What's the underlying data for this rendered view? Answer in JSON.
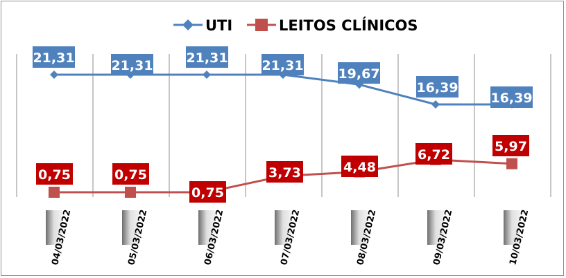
{
  "chart_data": {
    "type": "line",
    "categories": [
      "04/03/2022",
      "05/03/2022",
      "06/03/2022",
      "07/03/2022",
      "08/03/2022",
      "09/03/2022",
      "10/03/2022"
    ],
    "series": [
      {
        "name": "UTI",
        "values": [
          21.31,
          21.31,
          21.31,
          21.31,
          19.67,
          16.39,
          16.39
        ],
        "labels": [
          "21,31",
          "21,31",
          "21,31",
          "21,31",
          "19,67",
          "16,39",
          "16,39"
        ],
        "color": "#4f81bd",
        "marker": "diamond"
      },
      {
        "name": "LEITOS CLÍNICOS",
        "values": [
          0.75,
          0.75,
          0.75,
          3.73,
          4.48,
          6.72,
          5.97
        ],
        "labels": [
          "0,75",
          "0,75",
          "0,75",
          "3,73",
          "4,48",
          "6,72",
          "5,97"
        ],
        "color": "#c0504d",
        "label_color": "#c00000",
        "marker": "square"
      }
    ],
    "legend": "top",
    "grid": "vertical"
  }
}
